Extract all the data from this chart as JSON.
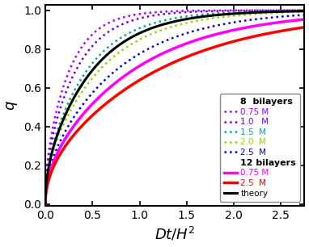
{
  "title": "",
  "xlabel": "$Dt/H^2$",
  "ylabel": "$q$",
  "xlim": [
    0,
    2.75
  ],
  "ylim": [
    -0.01,
    1.03
  ],
  "xticks": [
    0.0,
    0.5,
    1.0,
    1.5,
    2.0,
    2.5
  ],
  "yticks": [
    0.0,
    0.2,
    0.4,
    0.6,
    0.8,
    1.0
  ],
  "background": "white",
  "legend_fontsize": 7.5,
  "axis_fontsize": 13,
  "tick_fontsize": 10,
  "series_8bl": [
    {
      "color": "#AA00FF",
      "D_factor": 0.38,
      "lw": 1.8,
      "label": "0.75 M"
    },
    {
      "color": "#7700CC",
      "D_factor": 0.3,
      "lw": 1.8,
      "label": "1.0   M"
    },
    {
      "color": "#00AA88",
      "D_factor": 0.22,
      "lw": 1.8,
      "label": "1.5  M"
    },
    {
      "color": "#88DD00",
      "D_factor": 0.17,
      "lw": 1.8,
      "label": "2.0  M"
    },
    {
      "color": "#0000CC",
      "D_factor": 0.13,
      "lw": 1.8,
      "label": "2.5  M"
    }
  ],
  "series_12bl": [
    {
      "color": "#FF00FF",
      "D_factor": 0.105,
      "lw": 2.5,
      "label": "0.75 M"
    },
    {
      "color": "#FF0000",
      "D_factor": 0.082,
      "lw": 2.5,
      "label": "2.5  M"
    }
  ],
  "theory": {
    "color": "black",
    "D_factor": 0.195,
    "lw": 2.2,
    "label": "theory"
  },
  "legend_header_8": "8  bilayers",
  "legend_header_12": "12 bilayers"
}
